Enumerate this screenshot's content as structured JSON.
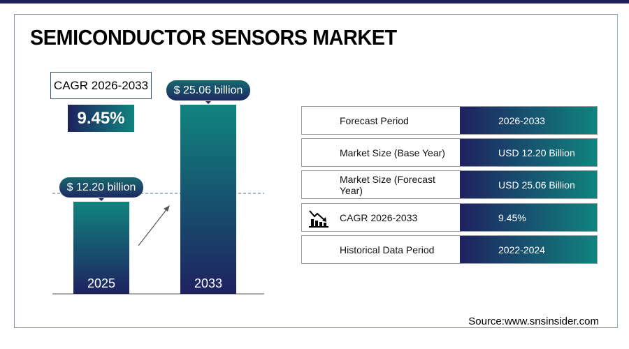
{
  "title": "SEMICONDUCTOR SENSORS MARKET",
  "cagr_label": "CAGR 2026-2033",
  "cagr_value": "9.45%",
  "chart_data": {
    "type": "bar",
    "categories": [
      "2025",
      "2033"
    ],
    "values": [
      12.2,
      25.06
    ],
    "data_labels": [
      "$ 12.20 billion",
      "$ 25.06 billion"
    ],
    "unit": "USD billion",
    "colors": {
      "top": "#10847e",
      "bottom": "#1e2260"
    }
  },
  "table": [
    {
      "label": "Forecast Period",
      "value": "2026-2033"
    },
    {
      "label": "Market Size (Base Year)",
      "value": "USD 12.20 Billion"
    },
    {
      "label": "Market Size (Forecast Year)",
      "value": "USD 25.06 Billion"
    },
    {
      "label": "CAGR 2026-2033",
      "value": "9.45%",
      "icon": "chart-icon"
    },
    {
      "label": "Historical Data Period",
      "value": "2022-2024"
    }
  ],
  "source": "Source:www.snsinsider.com"
}
